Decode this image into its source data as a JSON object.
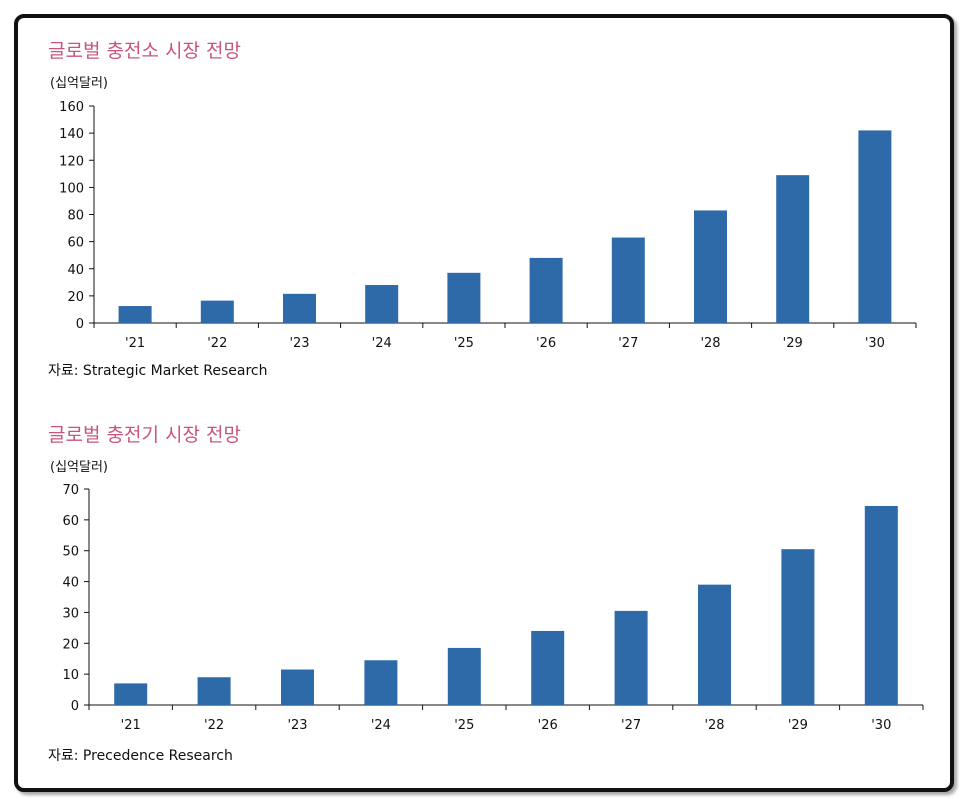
{
  "colors": {
    "bar": "#2e6aa8",
    "title": "#c9557f",
    "axis": "#111111"
  },
  "chart_data": [
    {
      "type": "bar",
      "title": "글로벌 충전소 시장 전망",
      "unit": "(십억달러)",
      "source": "자료: Strategic Market Research",
      "categories": [
        "'21",
        "'22",
        "'23",
        "'24",
        "'25",
        "'26",
        "'27",
        "'28",
        "'29",
        "'30"
      ],
      "values": [
        12.5,
        16.5,
        21.5,
        28,
        37,
        48,
        63,
        83,
        109,
        142
      ],
      "ylim": [
        0,
        160
      ],
      "yticks": [
        0,
        20,
        40,
        60,
        80,
        100,
        120,
        140,
        160
      ],
      "grid": false
    },
    {
      "type": "bar",
      "title": "글로벌 충전기 시장 전망",
      "unit": "(십억달러)",
      "source": "자료: Precedence Research",
      "categories": [
        "'21",
        "'22",
        "'23",
        "'24",
        "'25",
        "'26",
        "'27",
        "'28",
        "'29",
        "'30"
      ],
      "values": [
        7,
        9,
        11.5,
        14.5,
        18.5,
        24,
        30.5,
        39,
        50.5,
        64.5
      ],
      "ylim": [
        0,
        70
      ],
      "yticks": [
        0,
        10,
        20,
        30,
        40,
        50,
        60,
        70
      ],
      "grid": false
    }
  ]
}
